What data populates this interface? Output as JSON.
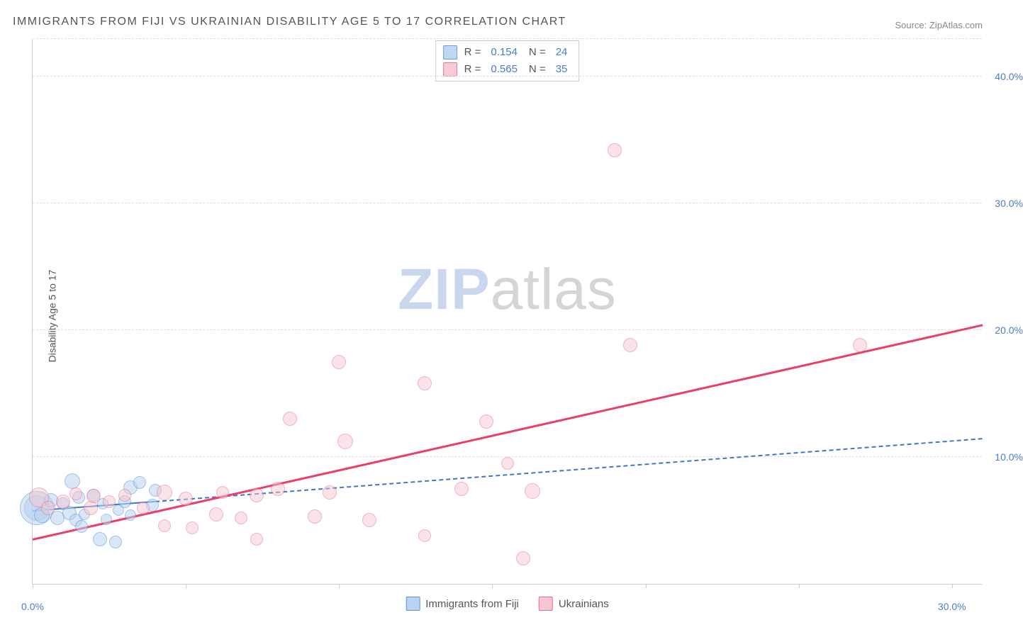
{
  "title": "IMMIGRANTS FROM FIJI VS UKRAINIAN DISABILITY AGE 5 TO 17 CORRELATION CHART",
  "source_label": "Source: ",
  "source_name": "ZipAtlas.com",
  "y_axis_label": "Disability Age 5 to 17",
  "watermark": {
    "part1": "ZIP",
    "part2": "atlas"
  },
  "chart": {
    "type": "scatter",
    "xlim": [
      0,
      31
    ],
    "ylim": [
      0,
      43
    ],
    "x_ticks": [
      0,
      5,
      10,
      15,
      20,
      25,
      30
    ],
    "x_tick_labels_shown": {
      "0": "0.0%",
      "30": "30.0%"
    },
    "y_ticks": [
      10,
      20,
      30,
      40
    ],
    "y_tick_labels": [
      "10.0%",
      "20.0%",
      "30.0%",
      "40.0%"
    ],
    "background_color": "#ffffff",
    "grid_color": "#dddddd",
    "axis_color": "#cccccc",
    "tick_label_color": "#4a7ec9",
    "series": [
      {
        "id": "fiji",
        "label": "Immigrants from Fiji",
        "fill_color": "#b9d3f0",
        "stroke_color": "#5a93d6",
        "fill_opacity": 0.55,
        "marker_radius": 10,
        "R": "0.154",
        "N": "24",
        "trendline": {
          "x1": 0,
          "y1": 5.7,
          "x2": 31,
          "y2": 11.4,
          "color": "#3b78c9",
          "width": 2.5,
          "dash": "8,6",
          "solid_until_x": 4
        },
        "points": [
          {
            "x": 0.15,
            "y": 6.0,
            "r": 18
          },
          {
            "x": 0.15,
            "y": 6.0,
            "r": 24
          },
          {
            "x": 0.3,
            "y": 5.4,
            "r": 11
          },
          {
            "x": 0.6,
            "y": 6.6,
            "r": 10
          },
          {
            "x": 0.8,
            "y": 5.2,
            "r": 10
          },
          {
            "x": 1.0,
            "y": 6.3,
            "r": 9
          },
          {
            "x": 1.2,
            "y": 5.6,
            "r": 10
          },
          {
            "x": 1.3,
            "y": 8.1,
            "r": 11
          },
          {
            "x": 1.4,
            "y": 5.0,
            "r": 9
          },
          {
            "x": 1.5,
            "y": 6.8,
            "r": 9
          },
          {
            "x": 1.6,
            "y": 4.5,
            "r": 9
          },
          {
            "x": 1.7,
            "y": 5.5,
            "r": 8
          },
          {
            "x": 2.0,
            "y": 7.0,
            "r": 9
          },
          {
            "x": 2.2,
            "y": 3.5,
            "r": 10
          },
          {
            "x": 2.3,
            "y": 6.3,
            "r": 8
          },
          {
            "x": 2.4,
            "y": 5.1,
            "r": 8
          },
          {
            "x": 2.7,
            "y": 3.3,
            "r": 9
          },
          {
            "x": 2.8,
            "y": 5.8,
            "r": 8
          },
          {
            "x": 3.0,
            "y": 6.5,
            "r": 9
          },
          {
            "x": 3.2,
            "y": 7.6,
            "r": 10
          },
          {
            "x": 3.2,
            "y": 5.4,
            "r": 8
          },
          {
            "x": 3.5,
            "y": 8.0,
            "r": 9
          },
          {
            "x": 3.9,
            "y": 6.2,
            "r": 9
          },
          {
            "x": 4.0,
            "y": 7.4,
            "r": 9
          }
        ]
      },
      {
        "id": "ukrainians",
        "label": "Ukrainians",
        "fill_color": "#f5c7d2",
        "stroke_color": "#e86a8a",
        "fill_opacity": 0.5,
        "marker_radius": 10,
        "R": "0.565",
        "N": "35",
        "trendline": {
          "x1": 0,
          "y1": 3.4,
          "x2": 31,
          "y2": 20.3,
          "color": "#ea3f6a",
          "width": 3.5,
          "dash": null
        },
        "points": [
          {
            "x": 0.2,
            "y": 6.8,
            "r": 14
          },
          {
            "x": 0.5,
            "y": 6.0,
            "r": 10
          },
          {
            "x": 1.0,
            "y": 6.5,
            "r": 10
          },
          {
            "x": 1.4,
            "y": 7.1,
            "r": 9
          },
          {
            "x": 1.9,
            "y": 6.0,
            "r": 10
          },
          {
            "x": 2.0,
            "y": 6.9,
            "r": 10
          },
          {
            "x": 2.5,
            "y": 6.5,
            "r": 9
          },
          {
            "x": 3.0,
            "y": 7.0,
            "r": 9
          },
          {
            "x": 3.6,
            "y": 6.0,
            "r": 9
          },
          {
            "x": 4.3,
            "y": 7.2,
            "r": 11
          },
          {
            "x": 4.3,
            "y": 4.6,
            "r": 9
          },
          {
            "x": 5.0,
            "y": 6.7,
            "r": 10
          },
          {
            "x": 5.2,
            "y": 4.4,
            "r": 9
          },
          {
            "x": 6.0,
            "y": 5.5,
            "r": 10
          },
          {
            "x": 6.2,
            "y": 7.2,
            "r": 9
          },
          {
            "x": 6.8,
            "y": 5.2,
            "r": 9
          },
          {
            "x": 7.3,
            "y": 7.0,
            "r": 10
          },
          {
            "x": 7.3,
            "y": 3.5,
            "r": 9
          },
          {
            "x": 8.0,
            "y": 7.5,
            "r": 10
          },
          {
            "x": 8.4,
            "y": 13.0,
            "r": 10
          },
          {
            "x": 9.2,
            "y": 5.3,
            "r": 10
          },
          {
            "x": 9.7,
            "y": 7.2,
            "r": 10
          },
          {
            "x": 10.0,
            "y": 17.5,
            "r": 10
          },
          {
            "x": 10.2,
            "y": 11.2,
            "r": 11
          },
          {
            "x": 11.0,
            "y": 5.0,
            "r": 10
          },
          {
            "x": 12.8,
            "y": 15.8,
            "r": 10
          },
          {
            "x": 12.8,
            "y": 3.8,
            "r": 9
          },
          {
            "x": 14.0,
            "y": 7.5,
            "r": 10
          },
          {
            "x": 14.8,
            "y": 12.8,
            "r": 10
          },
          {
            "x": 15.5,
            "y": 9.5,
            "r": 9
          },
          {
            "x": 16.0,
            "y": 2.0,
            "r": 10
          },
          {
            "x": 16.3,
            "y": 7.3,
            "r": 11
          },
          {
            "x": 19.0,
            "y": 34.2,
            "r": 10
          },
          {
            "x": 19.5,
            "y": 18.8,
            "r": 10
          },
          {
            "x": 27.0,
            "y": 18.8,
            "r": 10
          }
        ]
      }
    ]
  }
}
